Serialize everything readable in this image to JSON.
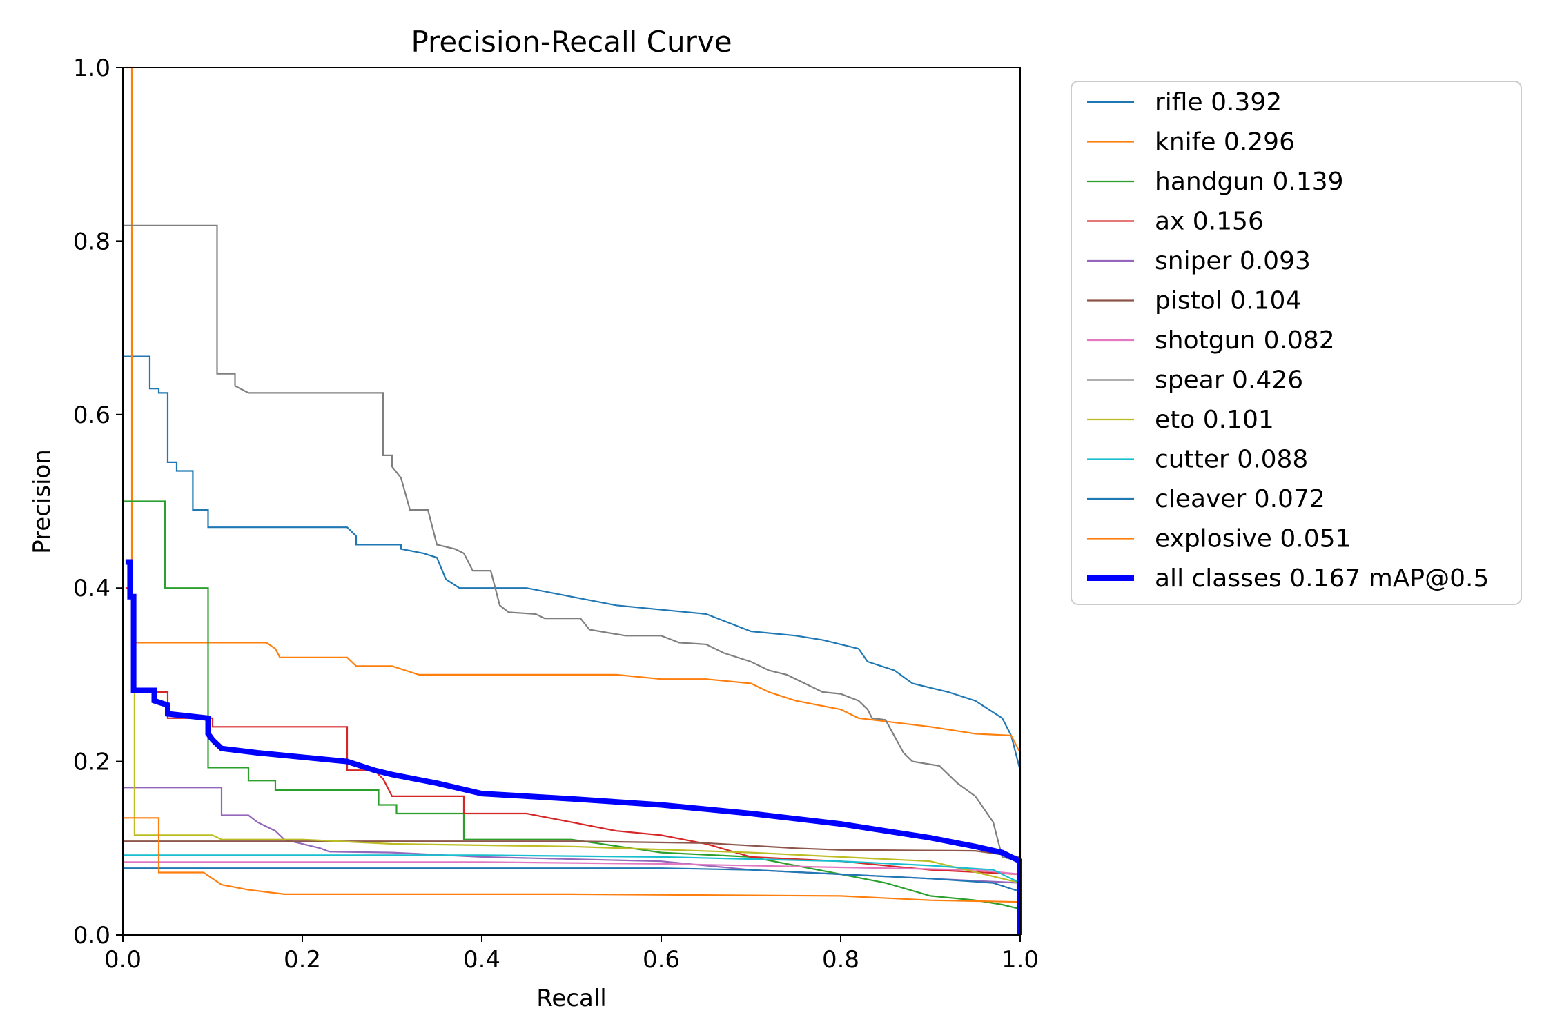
{
  "chart_data": {
    "type": "line",
    "title": "Precision-Recall Curve",
    "xlabel": "Recall",
    "ylabel": "Precision",
    "xlim": [
      0,
      1
    ],
    "ylim": [
      0,
      1
    ],
    "x_ticks": [
      "0.0",
      "0.2",
      "0.4",
      "0.6",
      "0.8",
      "1.0"
    ],
    "y_ticks": [
      "0.0",
      "0.2",
      "0.4",
      "0.6",
      "0.8",
      "1.0"
    ],
    "grid": false,
    "legend_position": "outside-right-top",
    "series": [
      {
        "name": "rifle 0.392",
        "color": "#1f77b4",
        "points": [
          [
            0,
            0.667
          ],
          [
            0.03,
            0.667
          ],
          [
            0.03,
            0.63
          ],
          [
            0.04,
            0.63
          ],
          [
            0.04,
            0.625
          ],
          [
            0.05,
            0.625
          ],
          [
            0.05,
            0.545
          ],
          [
            0.06,
            0.545
          ],
          [
            0.06,
            0.535
          ],
          [
            0.078,
            0.535
          ],
          [
            0.078,
            0.49
          ],
          [
            0.095,
            0.49
          ],
          [
            0.095,
            0.47
          ],
          [
            0.25,
            0.47
          ],
          [
            0.26,
            0.46
          ],
          [
            0.26,
            0.45
          ],
          [
            0.31,
            0.45
          ],
          [
            0.31,
            0.445
          ],
          [
            0.335,
            0.44
          ],
          [
            0.35,
            0.435
          ],
          [
            0.36,
            0.41
          ],
          [
            0.375,
            0.4
          ],
          [
            0.45,
            0.4
          ],
          [
            0.5,
            0.39
          ],
          [
            0.55,
            0.38
          ],
          [
            0.65,
            0.37
          ],
          [
            0.7,
            0.35
          ],
          [
            0.75,
            0.345
          ],
          [
            0.78,
            0.34
          ],
          [
            0.82,
            0.33
          ],
          [
            0.83,
            0.315
          ],
          [
            0.86,
            0.305
          ],
          [
            0.88,
            0.29
          ],
          [
            0.92,
            0.28
          ],
          [
            0.95,
            0.27
          ],
          [
            0.98,
            0.25
          ],
          [
            0.99,
            0.23
          ],
          [
            1.0,
            0.19
          ]
        ]
      },
      {
        "name": "knife 0.296",
        "color": "#ff7f0e",
        "points": [
          [
            0.003,
            1.0
          ],
          [
            0.01,
            1.0
          ],
          [
            0.01,
            0.337
          ],
          [
            0.16,
            0.337
          ],
          [
            0.17,
            0.33
          ],
          [
            0.175,
            0.32
          ],
          [
            0.2,
            0.32
          ],
          [
            0.25,
            0.32
          ],
          [
            0.26,
            0.31
          ],
          [
            0.3,
            0.31
          ],
          [
            0.33,
            0.3
          ],
          [
            0.55,
            0.3
          ],
          [
            0.6,
            0.295
          ],
          [
            0.65,
            0.295
          ],
          [
            0.7,
            0.29
          ],
          [
            0.72,
            0.28
          ],
          [
            0.75,
            0.27
          ],
          [
            0.8,
            0.26
          ],
          [
            0.82,
            0.25
          ],
          [
            0.9,
            0.24
          ],
          [
            0.95,
            0.232
          ],
          [
            0.99,
            0.23
          ],
          [
            1.0,
            0.21
          ],
          [
            1.0,
            0.0
          ]
        ]
      },
      {
        "name": "handgun 0.139",
        "color": "#2ca02c",
        "points": [
          [
            0,
            0.5
          ],
          [
            0.047,
            0.5
          ],
          [
            0.047,
            0.4
          ],
          [
            0.095,
            0.4
          ],
          [
            0.095,
            0.193
          ],
          [
            0.14,
            0.193
          ],
          [
            0.14,
            0.178
          ],
          [
            0.17,
            0.178
          ],
          [
            0.17,
            0.167
          ],
          [
            0.285,
            0.167
          ],
          [
            0.285,
            0.15
          ],
          [
            0.305,
            0.15
          ],
          [
            0.305,
            0.14
          ],
          [
            0.38,
            0.14
          ],
          [
            0.38,
            0.11
          ],
          [
            0.5,
            0.11
          ],
          [
            0.6,
            0.095
          ],
          [
            0.7,
            0.09
          ],
          [
            0.8,
            0.07
          ],
          [
            0.85,
            0.06
          ],
          [
            0.9,
            0.045
          ],
          [
            0.95,
            0.04
          ],
          [
            0.98,
            0.035
          ],
          [
            1.0,
            0.03
          ]
        ]
      },
      {
        "name": "ax 0.156",
        "color": "#d62728",
        "points": [
          [
            0.003,
            0.4
          ],
          [
            0.01,
            0.4
          ],
          [
            0.01,
            0.28
          ],
          [
            0.05,
            0.28
          ],
          [
            0.05,
            0.25
          ],
          [
            0.1,
            0.25
          ],
          [
            0.1,
            0.24
          ],
          [
            0.25,
            0.24
          ],
          [
            0.25,
            0.19
          ],
          [
            0.28,
            0.19
          ],
          [
            0.29,
            0.18
          ],
          [
            0.3,
            0.16
          ],
          [
            0.38,
            0.16
          ],
          [
            0.38,
            0.14
          ],
          [
            0.45,
            0.14
          ],
          [
            0.5,
            0.13
          ],
          [
            0.55,
            0.12
          ],
          [
            0.6,
            0.115
          ],
          [
            0.65,
            0.105
          ],
          [
            0.7,
            0.09
          ],
          [
            0.8,
            0.085
          ],
          [
            0.9,
            0.075
          ],
          [
            1.0,
            0.07
          ]
        ]
      },
      {
        "name": "sniper 0.093",
        "color": "#9467bd",
        "points": [
          [
            0,
            0.17
          ],
          [
            0.11,
            0.17
          ],
          [
            0.11,
            0.138
          ],
          [
            0.14,
            0.138
          ],
          [
            0.15,
            0.13
          ],
          [
            0.17,
            0.12
          ],
          [
            0.18,
            0.11
          ],
          [
            0.22,
            0.1
          ],
          [
            0.23,
            0.096
          ],
          [
            0.3,
            0.095
          ],
          [
            0.4,
            0.09
          ],
          [
            0.6,
            0.085
          ],
          [
            0.7,
            0.075
          ],
          [
            0.8,
            0.07
          ],
          [
            0.9,
            0.065
          ],
          [
            1.0,
            0.06
          ]
        ]
      },
      {
        "name": "pistol 0.104",
        "color": "#8c564b",
        "points": [
          [
            0,
            0.108
          ],
          [
            0.5,
            0.108
          ],
          [
            0.65,
            0.106
          ],
          [
            0.75,
            0.1
          ],
          [
            0.8,
            0.098
          ],
          [
            0.95,
            0.097
          ],
          [
            1.0,
            0.09
          ]
        ]
      },
      {
        "name": "shotgun 0.082",
        "color": "#e377c2",
        "points": [
          [
            0,
            0.084
          ],
          [
            0.4,
            0.084
          ],
          [
            0.6,
            0.082
          ],
          [
            0.8,
            0.078
          ],
          [
            0.95,
            0.075
          ],
          [
            1.0,
            0.07
          ]
        ]
      },
      {
        "name": "spear 0.426",
        "color": "#7f7f7f",
        "points": [
          [
            0,
            0.818
          ],
          [
            0.105,
            0.818
          ],
          [
            0.105,
            0.647
          ],
          [
            0.125,
            0.647
          ],
          [
            0.125,
            0.633
          ],
          [
            0.14,
            0.625
          ],
          [
            0.29,
            0.625
          ],
          [
            0.29,
            0.553
          ],
          [
            0.3,
            0.553
          ],
          [
            0.3,
            0.54
          ],
          [
            0.31,
            0.527
          ],
          [
            0.32,
            0.49
          ],
          [
            0.34,
            0.49
          ],
          [
            0.35,
            0.45
          ],
          [
            0.37,
            0.445
          ],
          [
            0.38,
            0.44
          ],
          [
            0.39,
            0.42
          ],
          [
            0.41,
            0.42
          ],
          [
            0.42,
            0.38
          ],
          [
            0.43,
            0.372
          ],
          [
            0.46,
            0.37
          ],
          [
            0.47,
            0.365
          ],
          [
            0.51,
            0.365
          ],
          [
            0.52,
            0.352
          ],
          [
            0.56,
            0.345
          ],
          [
            0.6,
            0.345
          ],
          [
            0.62,
            0.337
          ],
          [
            0.65,
            0.335
          ],
          [
            0.67,
            0.325
          ],
          [
            0.7,
            0.315
          ],
          [
            0.72,
            0.305
          ],
          [
            0.74,
            0.3
          ],
          [
            0.76,
            0.29
          ],
          [
            0.78,
            0.28
          ],
          [
            0.8,
            0.278
          ],
          [
            0.82,
            0.27
          ],
          [
            0.83,
            0.26
          ],
          [
            0.835,
            0.25
          ],
          [
            0.85,
            0.248
          ],
          [
            0.87,
            0.21
          ],
          [
            0.88,
            0.2
          ],
          [
            0.91,
            0.195
          ],
          [
            0.93,
            0.175
          ],
          [
            0.95,
            0.16
          ],
          [
            0.97,
            0.13
          ],
          [
            0.98,
            0.09
          ],
          [
            1.0,
            0.085
          ]
        ]
      },
      {
        "name": "eto 0.101",
        "color": "#bcbd22",
        "points": [
          [
            0.01,
            0.35
          ],
          [
            0.013,
            0.35
          ],
          [
            0.013,
            0.115
          ],
          [
            0.1,
            0.115
          ],
          [
            0.11,
            0.11
          ],
          [
            0.2,
            0.11
          ],
          [
            0.3,
            0.105
          ],
          [
            0.5,
            0.102
          ],
          [
            0.7,
            0.095
          ],
          [
            0.8,
            0.09
          ],
          [
            0.9,
            0.085
          ],
          [
            1.0,
            0.06
          ]
        ]
      },
      {
        "name": "cutter 0.088",
        "color": "#17becf",
        "points": [
          [
            0,
            0.092
          ],
          [
            0.4,
            0.092
          ],
          [
            0.6,
            0.09
          ],
          [
            0.8,
            0.085
          ],
          [
            0.9,
            0.08
          ],
          [
            0.97,
            0.075
          ],
          [
            1.0,
            0.06
          ]
        ]
      },
      {
        "name": "cleaver 0.072",
        "color": "#1f77b4",
        "points": [
          [
            0,
            0.077
          ],
          [
            0.6,
            0.077
          ],
          [
            0.7,
            0.075
          ],
          [
            0.8,
            0.07
          ],
          [
            0.9,
            0.065
          ],
          [
            0.97,
            0.06
          ],
          [
            1.0,
            0.05
          ]
        ]
      },
      {
        "name": "explosive 0.051",
        "color": "#ff7f0e",
        "points": [
          [
            0,
            0.135
          ],
          [
            0.04,
            0.135
          ],
          [
            0.04,
            0.072
          ],
          [
            0.09,
            0.072
          ],
          [
            0.1,
            0.065
          ],
          [
            0.11,
            0.058
          ],
          [
            0.14,
            0.052
          ],
          [
            0.18,
            0.047
          ],
          [
            0.5,
            0.047
          ],
          [
            0.8,
            0.045
          ],
          [
            0.9,
            0.04
          ],
          [
            1.0,
            0.038
          ]
        ]
      },
      {
        "name": "all classes 0.167 mAP@0.5",
        "color": "#0000ff",
        "bold": true,
        "points": [
          [
            0.003,
            0.43
          ],
          [
            0.008,
            0.43
          ],
          [
            0.008,
            0.39
          ],
          [
            0.012,
            0.39
          ],
          [
            0.012,
            0.282
          ],
          [
            0.035,
            0.282
          ],
          [
            0.035,
            0.27
          ],
          [
            0.05,
            0.265
          ],
          [
            0.05,
            0.255
          ],
          [
            0.095,
            0.25
          ],
          [
            0.095,
            0.232
          ],
          [
            0.1,
            0.225
          ],
          [
            0.11,
            0.215
          ],
          [
            0.15,
            0.21
          ],
          [
            0.2,
            0.205
          ],
          [
            0.25,
            0.2
          ],
          [
            0.28,
            0.19
          ],
          [
            0.3,
            0.185
          ],
          [
            0.35,
            0.175
          ],
          [
            0.4,
            0.163
          ],
          [
            0.5,
            0.157
          ],
          [
            0.6,
            0.15
          ],
          [
            0.7,
            0.14
          ],
          [
            0.8,
            0.128
          ],
          [
            0.9,
            0.112
          ],
          [
            0.95,
            0.102
          ],
          [
            0.98,
            0.095
          ],
          [
            1.0,
            0.085
          ],
          [
            1.0,
            0.0
          ]
        ]
      }
    ]
  }
}
